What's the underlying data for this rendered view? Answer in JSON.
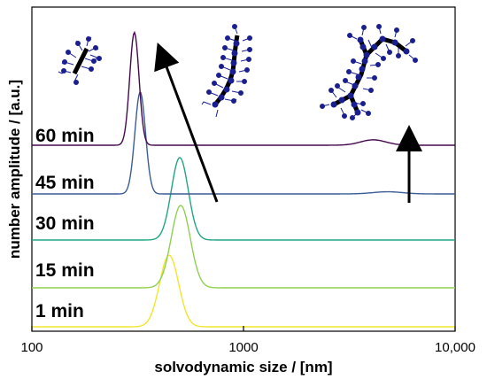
{
  "chart_data": {
    "type": "line",
    "xlabel": "solvodynamic size / [nm]",
    "ylabel": "number amplitude / [a.u.]",
    "x_scale": "log",
    "xlim": [
      100,
      10000
    ],
    "x_ticks": [
      {
        "value": 100,
        "label": "100"
      },
      {
        "value": 1000,
        "label": "1000"
      },
      {
        "value": 10000,
        "label": "10,000"
      }
    ],
    "grid": false,
    "legend": "none",
    "series": [
      {
        "name": "1 min",
        "color": "#f2e52a",
        "peaks": [
          {
            "x": 445,
            "amp": 0.33,
            "w": 0.045
          }
        ]
      },
      {
        "name": "15 min",
        "color": "#8fd14f",
        "peaks": [
          {
            "x": 505,
            "amp": 0.38,
            "w": 0.045
          }
        ]
      },
      {
        "name": "30 min",
        "color": "#21a585",
        "peaks": [
          {
            "x": 500,
            "amp": 0.38,
            "w": 0.04
          }
        ]
      },
      {
        "name": "45 min",
        "color": "#3b5c95",
        "peaks": [
          {
            "x": 325,
            "amp": 0.47,
            "w": 0.025
          },
          {
            "x": 4800,
            "amp": 0.01,
            "w": 0.07
          }
        ]
      },
      {
        "name": "60 min",
        "color": "#45094e",
        "peaks": [
          {
            "x": 305,
            "amp": 0.52,
            "w": 0.022
          },
          {
            "x": 4100,
            "amp": 0.025,
            "w": 0.06
          }
        ]
      }
    ],
    "annotations": [
      {
        "type": "arrow",
        "meaning": "main peak shifts to smaller size over time"
      },
      {
        "type": "arrow",
        "meaning": "aggregate peak grows over time"
      },
      {
        "type": "illustration",
        "meaning": "molecular brush schematics"
      }
    ]
  }
}
